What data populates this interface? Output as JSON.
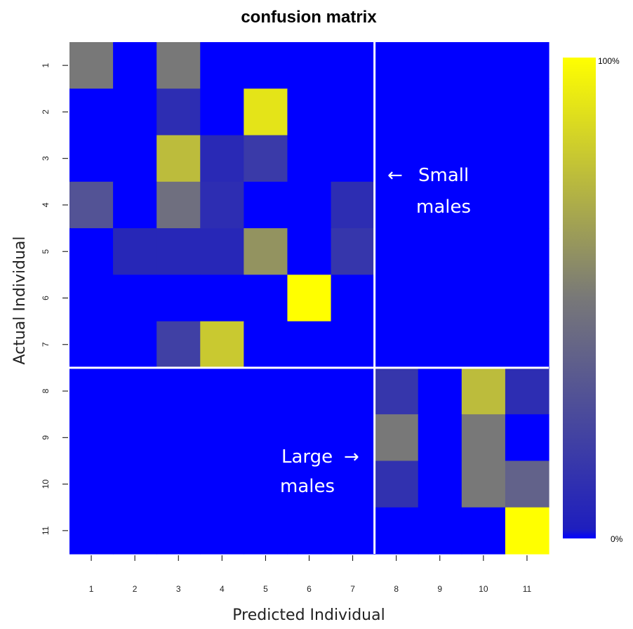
{
  "chart_data": {
    "type": "heatmap",
    "title": "confusion matrix",
    "xlabel": "Predicted Individual",
    "ylabel": "Actual Individual",
    "x_categories": [
      "1",
      "2",
      "3",
      "4",
      "5",
      "6",
      "7",
      "8",
      "9",
      "10",
      "11"
    ],
    "y_categories": [
      "1",
      "2",
      "3",
      "4",
      "5",
      "6",
      "7",
      "8",
      "9",
      "10",
      "11"
    ],
    "value_unit": "fraction of actual individual",
    "values": [
      [
        0.5,
        0,
        0.5,
        0,
        0,
        0,
        0,
        0,
        0,
        0,
        0
      ],
      [
        0,
        0,
        0.1,
        0,
        0.9,
        0,
        0,
        0,
        0,
        0,
        0
      ],
      [
        0,
        0,
        0.75,
        0.08,
        0.17,
        0,
        0,
        0,
        0,
        0,
        0
      ],
      [
        0.3,
        0,
        0.45,
        0.1,
        0,
        0,
        0.1,
        0,
        0,
        0,
        0
      ],
      [
        0,
        0.07,
        0.07,
        0.07,
        0.6,
        0,
        0.15,
        0,
        0,
        0,
        0
      ],
      [
        0,
        0,
        0,
        0,
        0,
        1.0,
        0,
        0,
        0,
        0,
        0
      ],
      [
        0,
        0,
        0.2,
        0.8,
        0,
        0,
        0,
        0,
        0,
        0,
        0
      ],
      [
        0,
        0,
        0,
        0,
        0,
        0,
        0,
        0.15,
        0,
        0.75,
        0.1
      ],
      [
        0,
        0,
        0,
        0,
        0,
        0,
        0,
        0.5,
        0,
        0.5,
        0
      ],
      [
        0,
        0,
        0,
        0,
        0,
        0,
        0,
        0.12,
        0,
        0.5,
        0.38
      ],
      [
        0,
        0,
        0,
        0,
        0,
        0,
        0,
        0,
        0,
        0,
        1.0
      ]
    ],
    "colorbar": {
      "min_label": "0%",
      "max_label": "100%",
      "colors": [
        "#0000ff",
        "#1e1ebe",
        "#787878",
        "#ffff00"
      ]
    },
    "group_divider_after": 7,
    "divider_color": "#ffffff",
    "annotations": [
      {
        "arrow": "←",
        "line1": "Small",
        "line2": "males"
      },
      {
        "arrow": "→",
        "line1": "Large",
        "line2": "males"
      }
    ]
  }
}
